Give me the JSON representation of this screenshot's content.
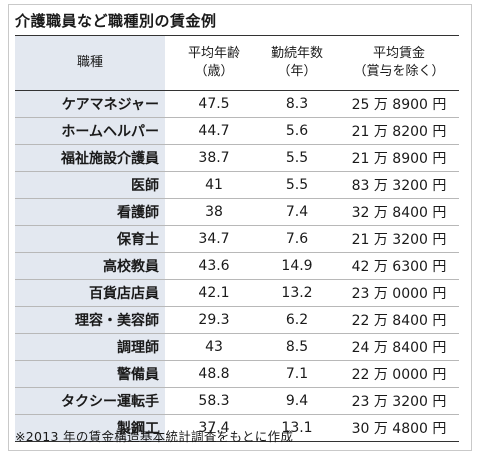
{
  "title": "介護職員など職種別の賃金例",
  "headers": {
    "name": "職種",
    "age_l1": "平均年齢",
    "age_l2": "（歳）",
    "years_l1": "勤続年数",
    "years_l2": "（年）",
    "wage_l1": "平均賃金",
    "wage_l2": "（賞与を除く）"
  },
  "rows": [
    {
      "name": "ケアマネジャー",
      "age": "47.5",
      "years": "8.3",
      "wage": "25 万 8900 円"
    },
    {
      "name": "ホームヘルパー",
      "age": "44.7",
      "years": "5.6",
      "wage": "21 万 8200 円"
    },
    {
      "name": "福祉施設介護員",
      "age": "38.7",
      "years": "5.5",
      "wage": "21 万 8900 円"
    },
    {
      "name": "医師",
      "age": "41",
      "years": "5.5",
      "wage": "83 万 3200 円"
    },
    {
      "name": "看護師",
      "age": "38",
      "years": "7.4",
      "wage": "32 万 8400 円"
    },
    {
      "name": "保育士",
      "age": "34.7",
      "years": "7.6",
      "wage": "21 万 3200 円"
    },
    {
      "name": "高校教員",
      "age": "43.6",
      "years": "14.9",
      "wage": "42 万 6300 円"
    },
    {
      "name": "百貨店店員",
      "age": "42.1",
      "years": "13.2",
      "wage": "23 万 0000 円"
    },
    {
      "name": "理容・美容師",
      "age": "29.3",
      "years": "6.2",
      "wage": "22 万 8400 円"
    },
    {
      "name": "調理師",
      "age": "43",
      "years": "8.5",
      "wage": "24 万 8400 円"
    },
    {
      "name": "警備員",
      "age": "48.8",
      "years": "7.1",
      "wage": "22 万 0000 円"
    },
    {
      "name": "タクシー運転手",
      "age": "58.3",
      "years": "9.4",
      "wage": "23 万 3200 円"
    },
    {
      "name": "製鋼工",
      "age": "37.4",
      "years": "13.1",
      "wage": "30 万 4800 円"
    }
  ],
  "footnote": "※2013 年の賃金構造基本統計調査をもとに作成",
  "colors": {
    "name_column_bg": "#e3e8f0",
    "rule": "#333333"
  }
}
